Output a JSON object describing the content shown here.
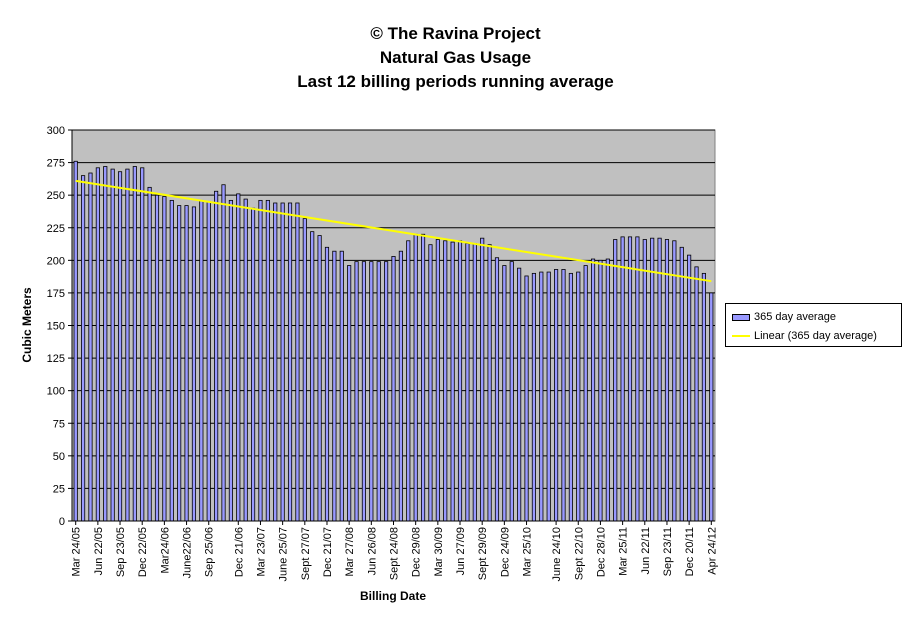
{
  "title": {
    "line1": "© The Ravina Project",
    "line2": "Natural Gas Usage",
    "line3": "Last 12 billing periods running average"
  },
  "colors": {
    "plot_background": "#c0c0c0",
    "bar_fill": "#9999ff",
    "bar_stroke": "#000000",
    "trend_line": "#ffff00",
    "gridline": "#000000"
  },
  "legend": {
    "series_label": "365 day average",
    "trend_label": "Linear (365 day average)"
  },
  "chart_data": {
    "type": "bar",
    "title": "© The Ravina Project Natural Gas Usage Last 12 billing periods running average",
    "xlabel": "Billing Date",
    "ylabel": "Cubic Meters",
    "ylim": [
      0,
      300
    ],
    "y_ticks": [
      0,
      25,
      50,
      75,
      100,
      125,
      150,
      175,
      200,
      225,
      250,
      275,
      300
    ],
    "grid": true,
    "legend_position": "right",
    "x_tick_labels": [
      "Mar 24/05",
      "Jun 22/05",
      "Sep 23/05",
      "Dec 22/05",
      "Mar24/06",
      "June22/06",
      "Sep 25/06",
      "Dec 21/06",
      "Mar 23/07",
      "June 25/07",
      "Sept 27/07",
      "Dec 21/07",
      "Mar 27/08",
      "Jun 26/08",
      "Sept 24/08",
      "Dec 29/08",
      "Mar 30/09",
      "Jun 27/09",
      "Sept 29/09",
      "Dec 24/09",
      "Mar 25/10",
      "June 24/10",
      "Sept 22/10",
      "Dec 28/10",
      "Mar 25/11",
      "Jun 22/11",
      "Sep 23/11",
      "Dec 20/11",
      "Apr 24/12"
    ],
    "series": [
      {
        "name": "365 day average",
        "values": [
          276,
          265,
          267,
          271,
          272,
          270,
          268,
          270,
          272,
          271,
          256,
          250,
          249,
          246,
          242,
          242,
          241,
          246,
          245,
          253,
          258,
          246,
          251,
          247,
          240,
          246,
          246,
          244,
          244,
          244,
          244,
          232,
          222,
          219,
          210,
          207,
          207,
          196,
          199,
          199,
          199,
          199,
          199,
          203,
          207,
          215,
          220,
          220,
          212,
          216,
          215,
          214,
          215,
          213,
          213,
          217,
          212,
          202,
          196,
          199,
          194,
          188,
          190,
          191,
          191,
          193,
          193,
          190,
          191,
          196,
          201,
          200,
          201,
          216,
          218,
          218,
          218,
          216,
          217,
          217,
          216,
          215,
          210,
          204,
          195,
          190,
          175
        ]
      }
    ],
    "trend": {
      "name": "Linear (365 day average)",
      "start": 261,
      "end": 184
    }
  }
}
